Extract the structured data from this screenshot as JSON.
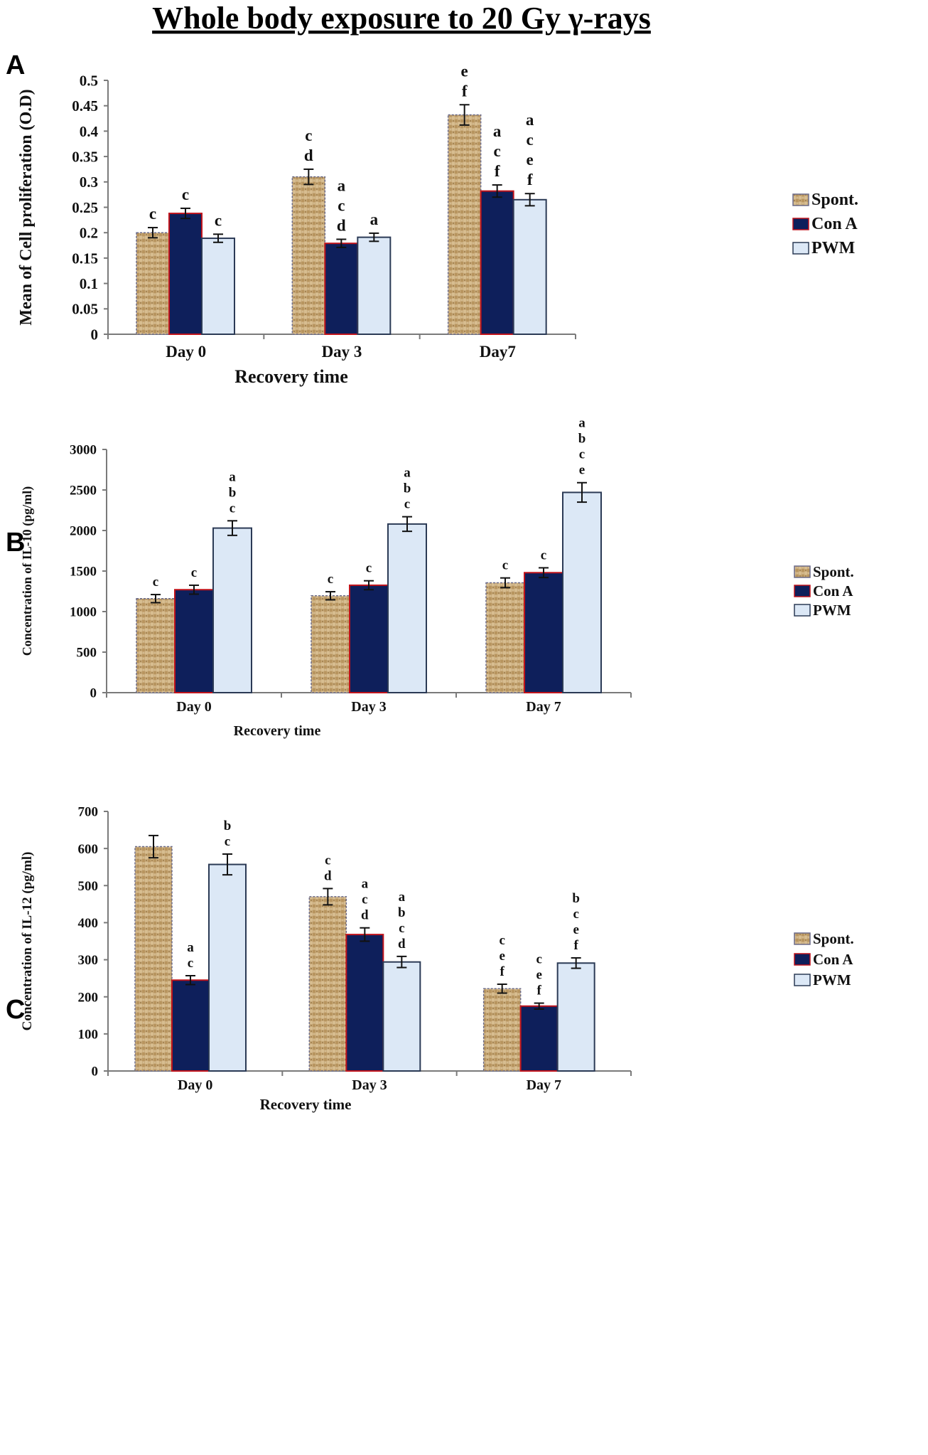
{
  "figure_title": "Whole body exposure to 20 Gy γ-rays",
  "colors": {
    "spont": "#c2a475",
    "con_a": "#0e1f5b",
    "pwm": "#dce8f6",
    "axis": "#7a7a7a",
    "error": "#111111"
  },
  "series_names": [
    "Spont.",
    "Con A",
    "PWM"
  ],
  "chart_data": [
    {
      "panel": "A",
      "type": "bar",
      "title": "",
      "xlabel": "Recovery time",
      "ylabel": "Mean of Cell proliferation (O.D)",
      "categories": [
        "Day 0",
        "Day 3",
        "Day7"
      ],
      "yticks": [
        "0",
        "0.05",
        "0.1",
        "0.15",
        "0.2",
        "0.25",
        "0.3",
        "0.35",
        "0.4",
        "0.45",
        "0.5"
      ],
      "ylim": [
        0,
        0.5
      ],
      "legend": [
        "Spont.",
        "Con A",
        "PWM"
      ],
      "series": [
        {
          "name": "Spont.",
          "values": [
            0.2,
            0.31,
            0.432
          ],
          "errors": [
            0.01,
            0.015,
            0.02
          ],
          "labels": [
            [
              "c"
            ],
            [
              "c",
              "d"
            ],
            [
              "e",
              "f"
            ]
          ]
        },
        {
          "name": "Con A",
          "values": [
            0.238,
            0.179,
            0.282
          ],
          "errors": [
            0.01,
            0.008,
            0.012
          ],
          "labels": [
            [
              "c"
            ],
            [
              "a",
              "c",
              "d"
            ],
            [
              "a",
              "c",
              "f"
            ]
          ]
        },
        {
          "name": "PWM",
          "values": [
            0.189,
            0.191,
            0.265
          ],
          "errors": [
            0.008,
            0.008,
            0.012
          ],
          "labels": [
            [
              "c"
            ],
            [
              "a"
            ],
            [
              "a",
              "c",
              "e",
              "f"
            ]
          ]
        }
      ]
    },
    {
      "panel": "B",
      "type": "bar",
      "title": "",
      "xlabel": "Recovery time",
      "ylabel": "Concentration of IL-10 (pg/ml)",
      "categories": [
        "Day 0",
        "Day 3",
        "Day 7"
      ],
      "yticks": [
        "0",
        "500",
        "1000",
        "1500",
        "2000",
        "2500",
        "3000"
      ],
      "ylim": [
        0,
        3000
      ],
      "legend": [
        "Spont.",
        "Con A",
        "PWM"
      ],
      "series": [
        {
          "name": "Spont.",
          "values": [
            1160,
            1195,
            1355
          ],
          "errors": [
            50,
            50,
            60
          ],
          "labels": [
            [
              "c"
            ],
            [
              "c"
            ],
            [
              "c"
            ]
          ]
        },
        {
          "name": "Con A",
          "values": [
            1270,
            1325,
            1480
          ],
          "errors": [
            55,
            55,
            60
          ],
          "labels": [
            [
              "c"
            ],
            [
              "c"
            ],
            [
              "c"
            ]
          ]
        },
        {
          "name": "PWM",
          "values": [
            2030,
            2080,
            2470
          ],
          "errors": [
            90,
            90,
            120
          ],
          "labels": [
            [
              "a",
              "b",
              "c"
            ],
            [
              "a",
              "b",
              "c"
            ],
            [
              "a",
              "b",
              "c",
              "e"
            ]
          ]
        }
      ]
    },
    {
      "panel": "C",
      "type": "bar",
      "title": "",
      "xlabel": "Recovery time",
      "ylabel": "Concentration of IL-12 (pg/ml)",
      "categories": [
        "Day 0",
        "Day 3",
        "Day 7"
      ],
      "yticks": [
        "0",
        "100",
        "200",
        "300",
        "400",
        "500",
        "600",
        "700"
      ],
      "ylim": [
        0,
        700
      ],
      "legend": [
        "Spont.",
        "Con A",
        "PWM"
      ],
      "series": [
        {
          "name": "Spont.",
          "values": [
            605,
            470,
            222
          ],
          "errors": [
            30,
            22,
            12
          ],
          "labels": [
            [],
            [
              "c",
              "d"
            ],
            [
              "c",
              "e",
              "f"
            ]
          ]
        },
        {
          "name": "Con A",
          "values": [
            245,
            368,
            175
          ],
          "errors": [
            12,
            18,
            8
          ],
          "labels": [
            [
              "a",
              "c"
            ],
            [
              "a",
              "c",
              "d"
            ],
            [
              "c",
              "e",
              "f"
            ]
          ]
        },
        {
          "name": "PWM",
          "values": [
            557,
            294,
            291
          ],
          "errors": [
            28,
            15,
            14
          ],
          "labels": [
            [
              "b",
              "c"
            ],
            [
              "a",
              "b",
              "c",
              "d"
            ],
            [
              "b",
              "c",
              "e",
              "f"
            ]
          ]
        }
      ]
    }
  ]
}
